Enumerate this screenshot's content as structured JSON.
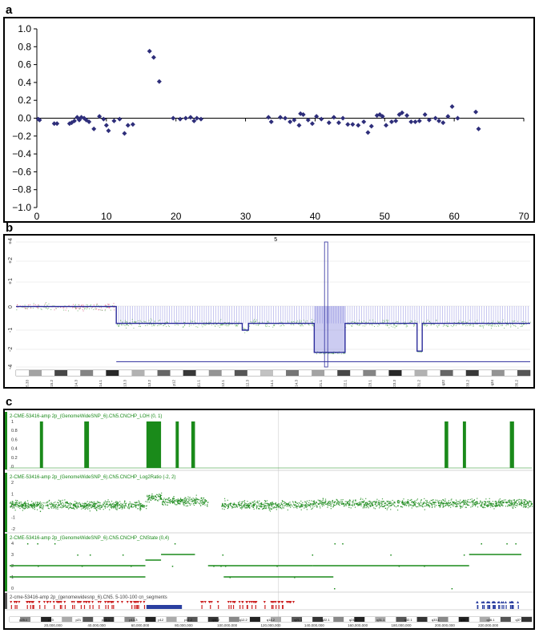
{
  "panels": {
    "a": {
      "letter": "a"
    },
    "b": {
      "letter": "b"
    },
    "c": {
      "letter": "c"
    }
  },
  "colors": {
    "scatter_marker": "#2e2e7a",
    "cn_blue": "#2c2c9c",
    "cn_blue_light": "#8e8ee0",
    "cn_red": "#d63c6a",
    "cn_green_pts": "#4aa04a",
    "igv_green": "#1a8a1a",
    "seg_red": "#cc2222",
    "seg_blue": "#2a3fa0"
  },
  "chart_data": [
    {
      "type": "scatter",
      "panel": "a",
      "xlim": [
        0,
        70
      ],
      "ylim": [
        -1.0,
        1.0
      ],
      "grid": false,
      "x_ticks": [
        "0",
        "10",
        "20",
        "30",
        "40",
        "50",
        "60",
        "70"
      ],
      "y_ticks": [
        "1.0",
        "0.8",
        "0.6",
        "0.4",
        "0.2",
        "0.0",
        "−0.2",
        "−0.4",
        "−0.6",
        "−0.8",
        "−1.0"
      ],
      "points": [
        [
          0.2,
          -0.01
        ],
        [
          0.4,
          -0.02
        ],
        [
          2.5,
          -0.06
        ],
        [
          2.9,
          -0.06
        ],
        [
          4.7,
          -0.06
        ],
        [
          5.0,
          -0.05
        ],
        [
          5.4,
          -0.03
        ],
        [
          5.8,
          0.01
        ],
        [
          6.1,
          -0.02
        ],
        [
          6.4,
          0.01
        ],
        [
          6.8,
          0.0
        ],
        [
          7.1,
          -0.02
        ],
        [
          7.5,
          -0.04
        ],
        [
          8.2,
          -0.12
        ],
        [
          9.0,
          0.02
        ],
        [
          9.6,
          -0.01
        ],
        [
          10.0,
          -0.08
        ],
        [
          10.3,
          -0.14
        ],
        [
          11.1,
          -0.03
        ],
        [
          11.9,
          -0.01
        ],
        [
          12.6,
          -0.17
        ],
        [
          13.1,
          -0.08
        ],
        [
          13.8,
          -0.07
        ],
        [
          16.2,
          0.75
        ],
        [
          16.8,
          0.68
        ],
        [
          17.6,
          0.41
        ],
        [
          19.6,
          0.0
        ],
        [
          20.6,
          -0.01
        ],
        [
          21.4,
          0.0
        ],
        [
          22.1,
          0.01
        ],
        [
          22.6,
          -0.03
        ],
        [
          23.0,
          0.0
        ],
        [
          23.6,
          -0.01
        ],
        [
          33.3,
          0.01
        ],
        [
          33.7,
          -0.04
        ],
        [
          35.0,
          0.01
        ],
        [
          35.7,
          0.0
        ],
        [
          36.4,
          -0.04
        ],
        [
          37.0,
          -0.02
        ],
        [
          37.7,
          -0.08
        ],
        [
          37.9,
          0.05
        ],
        [
          38.3,
          0.04
        ],
        [
          39.0,
          -0.02
        ],
        [
          39.6,
          -0.06
        ],
        [
          40.2,
          0.02
        ],
        [
          40.9,
          -0.01
        ],
        [
          42.0,
          -0.05
        ],
        [
          42.7,
          0.01
        ],
        [
          43.4,
          -0.05
        ],
        [
          44.0,
          0.0
        ],
        [
          44.7,
          -0.07
        ],
        [
          45.4,
          -0.07
        ],
        [
          46.2,
          -0.08
        ],
        [
          47.0,
          -0.04
        ],
        [
          47.6,
          -0.16
        ],
        [
          48.1,
          -0.09
        ],
        [
          48.9,
          0.03
        ],
        [
          49.3,
          0.04
        ],
        [
          49.7,
          0.02
        ],
        [
          50.2,
          -0.08
        ],
        [
          51.0,
          -0.04
        ],
        [
          51.6,
          -0.03
        ],
        [
          52.1,
          0.04
        ],
        [
          52.5,
          0.06
        ],
        [
          53.2,
          0.03
        ],
        [
          53.8,
          -0.04
        ],
        [
          54.4,
          -0.04
        ],
        [
          55.0,
          -0.03
        ],
        [
          55.8,
          0.04
        ],
        [
          56.4,
          -0.02
        ],
        [
          57.3,
          0.0
        ],
        [
          57.8,
          -0.03
        ],
        [
          58.4,
          -0.05
        ],
        [
          59.1,
          0.02
        ],
        [
          59.7,
          0.13
        ],
        [
          60.5,
          0.0
        ],
        [
          63.1,
          0.07
        ],
        [
          63.5,
          -0.12
        ]
      ]
    },
    {
      "type": "line",
      "panel": "b",
      "chromosome_label": "5",
      "y_ticks": [
        "+4",
        "+2",
        "+1",
        "0",
        "-1",
        "-2",
        "-4"
      ],
      "cytobands": [
        "p15.33",
        "p15.2",
        "p14.3",
        "p14.1",
        "p13.3",
        "p13.2",
        "p12",
        "q11.1",
        "q12.1",
        "q12.3",
        "q14.1",
        "q14.3",
        "q21.1",
        "q22.1",
        "q23.1",
        "q23.3",
        "q31.2",
        "q32",
        "q33.2",
        "q34",
        "q35.2"
      ],
      "segments": [
        {
          "start": 0.0,
          "end": 0.195,
          "value": -0.02
        },
        {
          "start": 0.195,
          "end": 0.44,
          "value": -0.72
        },
        {
          "start": 0.44,
          "end": 0.452,
          "value": -1.0
        },
        {
          "start": 0.452,
          "end": 0.58,
          "value": -0.72
        },
        {
          "start": 0.58,
          "end": 0.64,
          "value": -2.35
        },
        {
          "start": 0.64,
          "end": 0.78,
          "value": -0.72
        },
        {
          "start": 0.78,
          "end": 0.79,
          "value": -2.2
        },
        {
          "start": 0.79,
          "end": 1.0,
          "value": -0.72
        }
      ]
    },
    {
      "type": "heatmap",
      "panel": "c",
      "tracks": [
        {
          "name": "2-CME-53416-amp 2p_(GenomeWideSNP_6).CN5.CNCHP_LOH (0, 1)",
          "y_ticks": [
            "1",
            "0.8",
            "0.6",
            "0.4",
            "0.2",
            "0"
          ]
        },
        {
          "name": "2-CME-53416-amp 2p_(GenomeWideSNP_6).CN5.CNCHP_Log2Ratio (-2, 2)",
          "y_ticks": [
            "2",
            "1",
            "0",
            "-1",
            "-2"
          ]
        },
        {
          "name": "2-CME-53416-amp 2p_(GenomeWideSNP_6).CN5.CNCHP_CNState (0,4)",
          "y_ticks": [
            "4",
            "3",
            "2",
            "1",
            "0"
          ]
        },
        {
          "name": "2-cme-53416-amp 2p_(genomewidesnp_6).CN5. 5-100-100 cn_segments",
          "y_ticks": []
        }
      ],
      "loh_regions": [
        [
          0.058,
          0.064
        ],
        [
          0.143,
          0.152
        ],
        [
          0.262,
          0.29
        ],
        [
          0.318,
          0.324
        ],
        [
          0.348,
          0.355
        ],
        [
          0.833,
          0.84
        ],
        [
          0.868,
          0.874
        ],
        [
          0.958,
          0.966
        ]
      ],
      "positions": [
        "20,000,000",
        "40,000,000",
        "60,000,000",
        "80,000,000",
        "100,000,000",
        "120,000,000",
        "140,000,000",
        "160,000,000",
        "180,000,000",
        "200,000,000",
        "220,000,000"
      ],
      "cytobands": [
        "p25.1",
        "p23",
        "p21",
        "p16.1",
        "p13.3",
        "p12",
        "p11.2",
        "q11.2",
        "q12.2",
        "q14.2",
        "q21.1",
        "q22.1",
        "q24.1",
        "q31.1",
        "q32.1",
        "q33.1",
        "q34",
        "q36.1",
        "q37"
      ]
    }
  ]
}
